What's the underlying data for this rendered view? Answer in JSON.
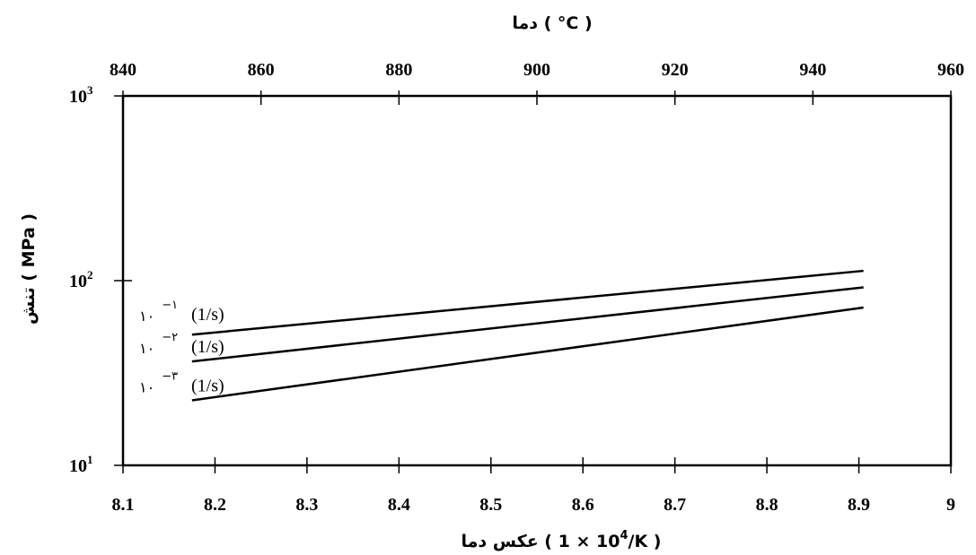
{
  "chart_data": {
    "type": "line",
    "title": "",
    "xlabel": "عکس دما ( 10⁴ × 1/K )",
    "xlabel_parts": {
      "prefix": "عکس دما ( ",
      "ten": "10",
      "exp": "4",
      "rest": " × 1/K )"
    },
    "x2label": "دما ( °C )",
    "ylabel": "تنش ( MPa )",
    "y_scale": "log",
    "xlim": [
      8.1,
      9.0
    ],
    "x2lim": [
      840,
      960
    ],
    "ylim": [
      10,
      1000
    ],
    "x_ticks": [
      "8.1",
      "8.2",
      "8.3",
      "8.4",
      "8.5",
      "8.6",
      "8.7",
      "8.8",
      "8.9",
      "9"
    ],
    "x2_ticks": [
      "840",
      "860",
      "880",
      "900",
      "920",
      "940",
      "960"
    ],
    "y_ticks": [
      {
        "base": "10",
        "exp": "1",
        "value": 10
      },
      {
        "base": "10",
        "exp": "2",
        "value": 100
      },
      {
        "base": "10",
        "exp": "3",
        "value": 1000
      }
    ],
    "grid": false,
    "series": [
      {
        "name": "۱۰⁻¹ (1/s)",
        "prefix": "۱۰",
        "exp": "−۱",
        "unit": "(1/s)",
        "x": [
          8.175,
          8.905
        ],
        "y": [
          51,
          113
        ]
      },
      {
        "name": "۱۰⁻۲ (1/s)",
        "prefix": "۱۰",
        "exp": "−۲",
        "unit": "(1/s)",
        "x": [
          8.175,
          8.905
        ],
        "y": [
          36.5,
          92
        ]
      },
      {
        "name": "۱۰⁻۳ (1/s)",
        "prefix": "۱۰",
        "exp": "−۳",
        "unit": "(1/s)",
        "x": [
          8.175,
          8.905
        ],
        "y": [
          22.5,
          71.5
        ]
      }
    ]
  }
}
